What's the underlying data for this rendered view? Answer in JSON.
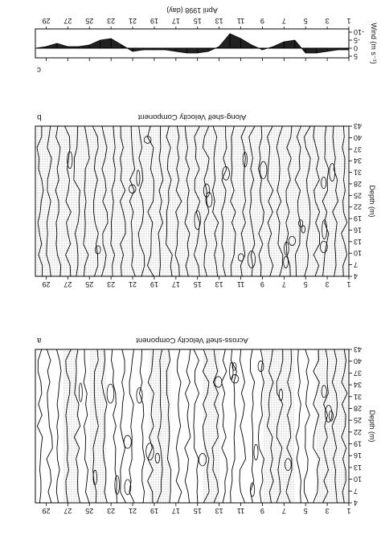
{
  "chart_data": [
    {
      "panel": "c",
      "type": "area",
      "title": "",
      "xlabel": "April 1998 (day)",
      "ylabel": "Wind (m s⁻¹)",
      "x_ticks": [
        1,
        3,
        5,
        7,
        9,
        11,
        13,
        15,
        17,
        19,
        21,
        23,
        25,
        27,
        29
      ],
      "y_ticks": [
        -10,
        -5,
        0,
        5
      ],
      "xlim": [
        1,
        30
      ],
      "ylim": [
        -12,
        6
      ],
      "panel_letter": "c",
      "series": [
        {
          "name": "",
          "x": [
            1,
            2,
            3,
            4,
            5,
            6,
            7,
            8,
            9,
            10,
            11,
            12,
            13,
            14,
            15,
            16,
            17,
            18,
            19,
            20,
            21,
            22,
            23,
            24,
            25,
            26,
            27,
            28,
            29,
            30
          ],
          "values": [
            1,
            1,
            2,
            3,
            3,
            -5,
            -4,
            -1,
            1,
            -2,
            -6,
            -9,
            -1,
            2,
            3,
            3,
            2,
            1,
            1,
            1,
            2,
            -2,
            -6,
            -5,
            -2,
            -1,
            -1,
            -3,
            -1,
            0
          ]
        }
      ]
    },
    {
      "panel": "b",
      "type": "heatmap",
      "title": "Along-shelf Velocity Component",
      "panel_letter": "b",
      "xlabel": "",
      "ylabel": "Depth (m)",
      "x_ticks": [
        1,
        3,
        5,
        7,
        9,
        11,
        13,
        15,
        17,
        19,
        21,
        23,
        25,
        27,
        29
      ],
      "y_ticks": [
        4,
        7,
        10,
        13,
        16,
        19,
        22,
        25,
        28,
        31,
        34,
        37,
        40,
        43
      ],
      "xlim": [
        1,
        30
      ],
      "ylim": [
        4,
        43
      ],
      "shaded_intervals": [
        [
          1,
          30
        ]
      ]
    },
    {
      "panel": "a",
      "type": "heatmap",
      "title": "Across-shelf Velocity Component",
      "panel_letter": "a",
      "xlabel": "",
      "ylabel": "Depth (m)",
      "x_ticks": [
        1,
        3,
        5,
        7,
        9,
        11,
        13,
        15,
        17,
        19,
        21,
        23,
        25,
        27,
        29
      ],
      "y_ticks": [
        4,
        7,
        10,
        13,
        16,
        19,
        22,
        25,
        28,
        31,
        34,
        37,
        40,
        43
      ],
      "xlim": [
        1,
        30
      ],
      "ylim": [
        4,
        43
      ],
      "shaded_intervals": [
        [
          1,
          4
        ],
        [
          6,
          9
        ],
        [
          13,
          14.5
        ],
        [
          17.5,
          19.5
        ],
        [
          23.5,
          25
        ],
        [
          26,
          27.5
        ]
      ]
    }
  ]
}
